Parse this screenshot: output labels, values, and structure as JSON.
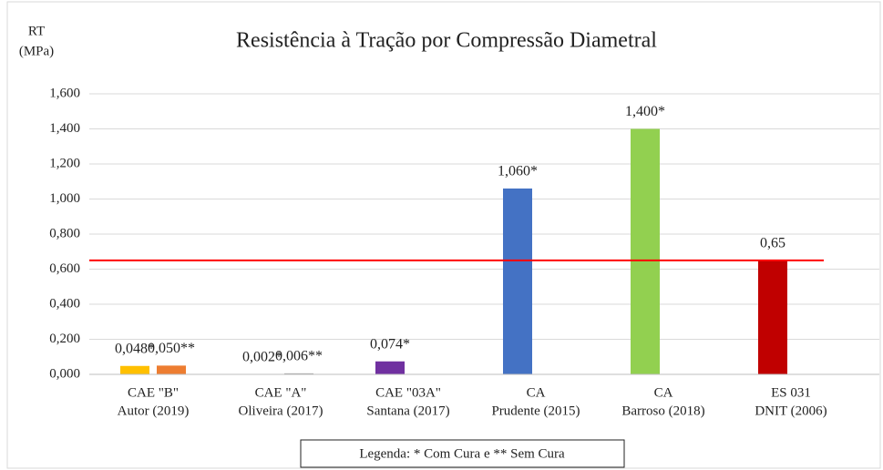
{
  "chart_data": {
    "type": "bar",
    "title": "Resistência à Tração por Compressão Diametral",
    "ylabel": [
      "RT",
      "(MPa)"
    ],
    "categories": [
      [
        "CAE  \"B\"",
        "Autor (2019)"
      ],
      [
        "CAE  \"A\"",
        "Oliveira (2017)"
      ],
      [
        "CAE  \"03A\"",
        "Santana (2017)"
      ],
      [
        "CA",
        "Prudente (2015)"
      ],
      [
        "CA",
        "Barroso (2018)"
      ],
      [
        "ES 031",
        "DNIT (2006)"
      ]
    ],
    "series": [
      {
        "values": [
          0.048,
          0.002,
          0.074,
          1.06,
          1.4,
          0.65
        ],
        "colors": [
          "#ffc000",
          "#ed7d31",
          "#7030a0",
          "#4472c4",
          "#92d050",
          "#c00000"
        ],
        "value_labels": [
          "0,048*",
          "0,002*",
          "0,074*",
          "1,060*",
          "1,400*",
          "0,65"
        ]
      },
      {
        "values": [
          0.05,
          0.006,
          null,
          null,
          null,
          null
        ],
        "colors": [
          "#ed7d31",
          "#a5a5a5",
          null,
          null,
          null,
          null
        ],
        "value_labels": [
          "0,050**",
          "0,006**",
          null,
          null,
          null,
          null
        ]
      }
    ],
    "reference_line": {
      "value": 0.65,
      "color": "#ff0000"
    },
    "ylim": [
      0,
      1.6
    ],
    "yticks": [
      {
        "value": 0,
        "label": "0,000"
      },
      {
        "value": 0.2,
        "label": "0,200"
      },
      {
        "value": 0.4,
        "label": "0,400"
      },
      {
        "value": 0.6,
        "label": "0,600"
      },
      {
        "value": 0.8,
        "label": "0,800"
      },
      {
        "value": 1.0,
        "label": "1,000"
      },
      {
        "value": 1.2,
        "label": "1,200"
      },
      {
        "value": 1.4,
        "label": "1,400"
      },
      {
        "value": 1.6,
        "label": "1,600"
      }
    ],
    "grid": true,
    "legend_note": "Legenda: * Com Cura e ** Sem Cura"
  }
}
